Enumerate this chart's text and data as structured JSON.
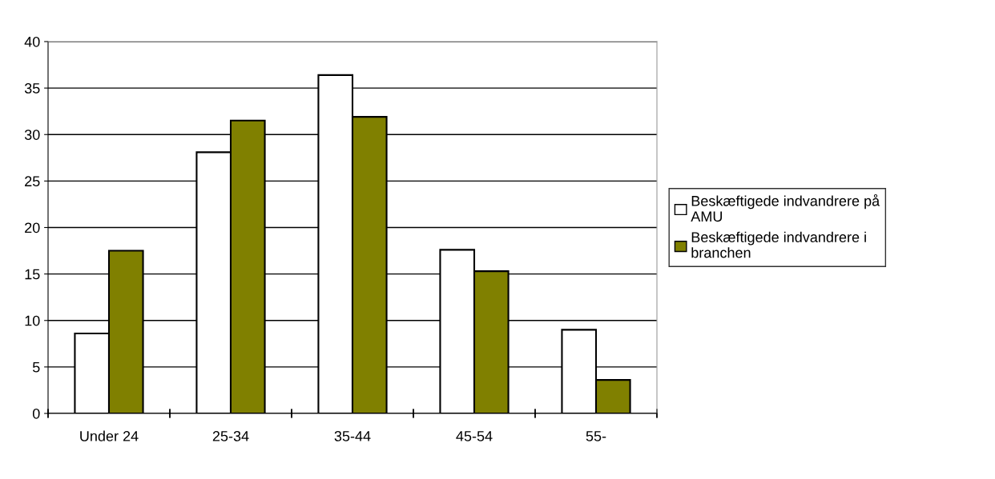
{
  "chart_data": {
    "type": "bar",
    "categories": [
      "Under 24",
      "25-34",
      "35-44",
      "45-54",
      "55-"
    ],
    "series": [
      {
        "name": "Beskæftigede indvandrere på AMU",
        "color": "#ffffff",
        "values": [
          8.6,
          28.1,
          36.4,
          17.6,
          9.0
        ]
      },
      {
        "name": "Beskæftigede indvandrere i branchen",
        "color": "#808000",
        "values": [
          17.5,
          31.5,
          31.9,
          15.3,
          3.6
        ]
      }
    ],
    "ylim": [
      0,
      40
    ],
    "yticks": [
      0,
      5,
      10,
      15,
      20,
      25,
      30,
      35,
      40
    ],
    "grid": "y",
    "legend": "right"
  }
}
